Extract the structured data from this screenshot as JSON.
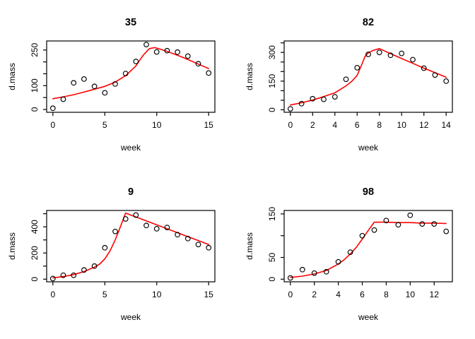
{
  "figure": {
    "background_color": "#ffffff",
    "point_color": "#000000",
    "fit_line_color": "#ff0000",
    "axis_color": "#000000",
    "layout": "2x2 grid of R-style scatter plots with fitted red curves"
  },
  "chart_data": [
    {
      "type": "scatter",
      "title": "35",
      "xlabel": "week",
      "ylabel": "d.mass",
      "x": [
        0,
        1,
        2,
        3,
        4,
        5,
        6,
        7,
        8,
        9,
        10,
        11,
        12,
        13,
        14,
        15
      ],
      "observed": [
        5,
        43,
        112,
        128,
        97,
        70,
        107,
        151,
        202,
        273,
        242,
        247,
        241,
        224,
        192,
        153
      ],
      "fit": [
        [
          0,
          45
        ],
        [
          1,
          53
        ],
        [
          2,
          62
        ],
        [
          3,
          73
        ],
        [
          4,
          85
        ],
        [
          5,
          97
        ],
        [
          6,
          115
        ],
        [
          7,
          142
        ],
        [
          8,
          183
        ],
        [
          8.7,
          228
        ],
        [
          9.3,
          256
        ],
        [
          9.8,
          260
        ],
        [
          10.3,
          254
        ],
        [
          11,
          244
        ],
        [
          12,
          228
        ],
        [
          13,
          210
        ],
        [
          14,
          191
        ],
        [
          15,
          172
        ]
      ],
      "xlim": [
        -0.6,
        15.6
      ],
      "ylim": [
        -12,
        288
      ],
      "x_ticks": [
        {
          "v": 0,
          "label": "0"
        },
        {
          "v": 5,
          "label": "5"
        },
        {
          "v": 10,
          "label": "10"
        },
        {
          "v": 15,
          "label": "15"
        }
      ],
      "y_ticks": [
        {
          "v": 0,
          "label": "0"
        },
        {
          "v": 50,
          "label": ""
        },
        {
          "v": 100,
          "label": "100"
        },
        {
          "v": 150,
          "label": ""
        },
        {
          "v": 200,
          "label": ""
        },
        {
          "v": 250,
          "label": "250"
        }
      ],
      "grid": false,
      "legend": null
    },
    {
      "type": "scatter",
      "title": "82",
      "xlabel": "week",
      "ylabel": "d.mass",
      "x": [
        0,
        1,
        2,
        3,
        4,
        5,
        6,
        7,
        8,
        9,
        10,
        11,
        12,
        13,
        14
      ],
      "observed": [
        5,
        32,
        58,
        55,
        68,
        160,
        220,
        290,
        300,
        285,
        295,
        262,
        218,
        182,
        150
      ],
      "fit": [
        [
          0,
          25
        ],
        [
          1,
          37
        ],
        [
          2,
          51
        ],
        [
          3,
          69
        ],
        [
          4,
          89
        ],
        [
          5,
          125
        ],
        [
          5.5,
          148
        ],
        [
          6,
          180
        ],
        [
          6.4,
          235
        ],
        [
          6.7,
          278
        ],
        [
          7,
          298
        ],
        [
          7.5,
          312
        ],
        [
          8,
          320
        ],
        [
          9,
          294
        ],
        [
          10,
          268
        ],
        [
          11,
          243
        ],
        [
          12,
          218
        ],
        [
          13,
          194
        ],
        [
          14,
          170
        ]
      ],
      "xlim": [
        -0.56,
        14.56
      ],
      "ylim": [
        -13,
        360
      ],
      "x_ticks": [
        {
          "v": 0,
          "label": "0"
        },
        {
          "v": 2,
          "label": "2"
        },
        {
          "v": 4,
          "label": "4"
        },
        {
          "v": 6,
          "label": "6"
        },
        {
          "v": 8,
          "label": "8"
        },
        {
          "v": 10,
          "label": "10"
        },
        {
          "v": 12,
          "label": "12"
        },
        {
          "v": 14,
          "label": "14"
        }
      ],
      "y_ticks": [
        {
          "v": 0,
          "label": "0"
        },
        {
          "v": 50,
          "label": ""
        },
        {
          "v": 100,
          "label": ""
        },
        {
          "v": 150,
          "label": "150"
        },
        {
          "v": 200,
          "label": ""
        },
        {
          "v": 250,
          "label": ""
        },
        {
          "v": 300,
          "label": "300"
        },
        {
          "v": 350,
          "label": ""
        }
      ],
      "grid": false,
      "legend": null
    },
    {
      "type": "scatter",
      "title": "9",
      "xlabel": "week",
      "ylabel": "d.mass",
      "x": [
        0,
        1,
        2,
        3,
        4,
        5,
        6,
        7,
        8,
        9,
        10,
        11,
        12,
        13,
        14,
        15
      ],
      "observed": [
        5,
        30,
        30,
        70,
        100,
        240,
        365,
        460,
        490,
        410,
        385,
        395,
        340,
        310,
        265,
        240
      ],
      "fit": [
        [
          0,
          10
        ],
        [
          1,
          20
        ],
        [
          2,
          35
        ],
        [
          3,
          58
        ],
        [
          4,
          92
        ],
        [
          4.5,
          115
        ],
        [
          5,
          155
        ],
        [
          5.5,
          215
        ],
        [
          6,
          300
        ],
        [
          6.5,
          400
        ],
        [
          7,
          505
        ],
        [
          8,
          475
        ],
        [
          9,
          445
        ],
        [
          10,
          415
        ],
        [
          11,
          385
        ],
        [
          12,
          355
        ],
        [
          13,
          325
        ],
        [
          14,
          295
        ],
        [
          15,
          265
        ]
      ],
      "xlim": [
        -0.6,
        15.6
      ],
      "ylim": [
        -20,
        525
      ],
      "x_ticks": [
        {
          "v": 0,
          "label": "0"
        },
        {
          "v": 5,
          "label": "5"
        },
        {
          "v": 10,
          "label": "10"
        },
        {
          "v": 15,
          "label": "15"
        }
      ],
      "y_ticks": [
        {
          "v": 0,
          "label": "0"
        },
        {
          "v": 100,
          "label": ""
        },
        {
          "v": 200,
          "label": "200"
        },
        {
          "v": 300,
          "label": ""
        },
        {
          "v": 400,
          "label": "400"
        },
        {
          "v": 500,
          "label": ""
        }
      ],
      "grid": false,
      "legend": null
    },
    {
      "type": "scatter",
      "title": "98",
      "xlabel": "week",
      "ylabel": "d.mass",
      "x": [
        0,
        1,
        2,
        3,
        4,
        5,
        6,
        7,
        8,
        9,
        10,
        11,
        12,
        13
      ],
      "observed": [
        3,
        22,
        14,
        17,
        40,
        62,
        100,
        113,
        135,
        125,
        147,
        127,
        127,
        110
      ],
      "fit": [
        [
          0,
          4
        ],
        [
          1,
          7
        ],
        [
          2,
          12
        ],
        [
          3,
          20
        ],
        [
          4,
          35
        ],
        [
          4.5,
          45
        ],
        [
          5,
          58
        ],
        [
          5.5,
          73
        ],
        [
          6,
          92
        ],
        [
          6.5,
          112
        ],
        [
          7,
          131
        ],
        [
          8,
          131
        ],
        [
          9,
          130
        ],
        [
          10,
          130
        ],
        [
          11,
          129
        ],
        [
          12,
          129
        ],
        [
          13,
          128
        ]
      ],
      "xlim": [
        -0.52,
        13.52
      ],
      "ylim": [
        -6,
        158
      ],
      "x_ticks": [
        {
          "v": 0,
          "label": "0"
        },
        {
          "v": 2,
          "label": "2"
        },
        {
          "v": 4,
          "label": "4"
        },
        {
          "v": 6,
          "label": "6"
        },
        {
          "v": 8,
          "label": "8"
        },
        {
          "v": 10,
          "label": "10"
        },
        {
          "v": 12,
          "label": "12"
        }
      ],
      "y_ticks": [
        {
          "v": 0,
          "label": "0"
        },
        {
          "v": 50,
          "label": "50"
        },
        {
          "v": 100,
          "label": ""
        },
        {
          "v": 150,
          "label": "150"
        }
      ],
      "grid": false,
      "legend": null
    }
  ]
}
